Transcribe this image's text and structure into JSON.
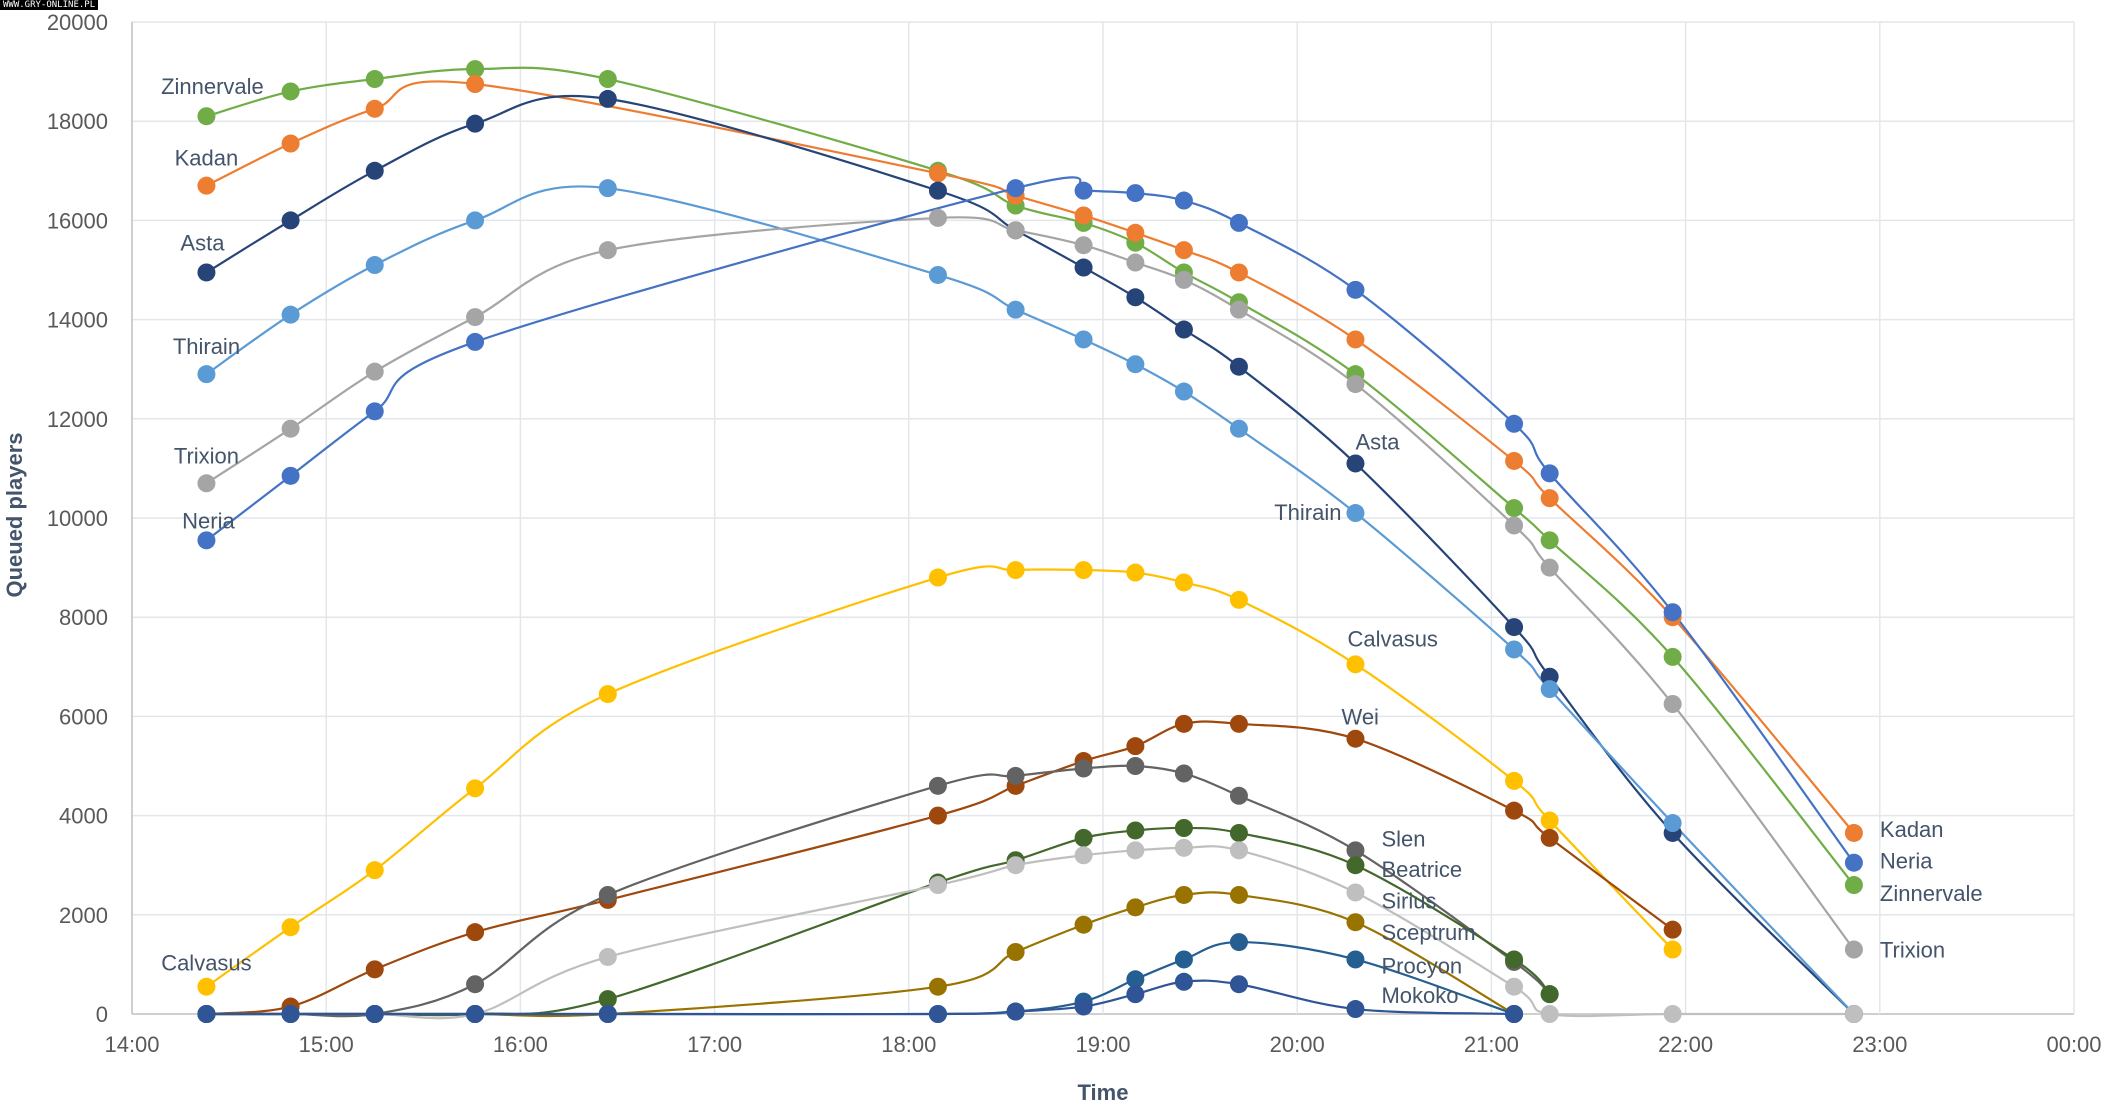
{
  "watermark": "WWW.GRY-ONLINE.PL",
  "chart_data": {
    "type": "line",
    "title": "",
    "xlabel": "Time",
    "ylabel": "Queued players",
    "ylim": [
      0,
      20000
    ],
    "xlim": [
      "14:00",
      "00:00"
    ],
    "y_ticks": [
      0,
      2000,
      4000,
      6000,
      8000,
      10000,
      12000,
      14000,
      16000,
      18000,
      20000
    ],
    "x_ticks": [
      "14:00",
      "15:00",
      "16:00",
      "17:00",
      "18:00",
      "19:00",
      "20:00",
      "21:00",
      "22:00",
      "23:00",
      "00:00"
    ],
    "grid": true,
    "legend": "none (inline labels)",
    "x": [
      "14:23",
      "14:49",
      "15:15",
      "15:46",
      "16:27",
      "18:09",
      "18:33",
      "18:54",
      "19:10",
      "19:25",
      "19:42",
      "20:18",
      "21:07",
      "21:18",
      "21:56",
      "22:52"
    ],
    "series": [
      {
        "name": "Zinnervale",
        "color": "#70ad47",
        "values": [
          18100,
          18600,
          18850,
          19050,
          18850,
          17000,
          16300,
          15950,
          15550,
          14950,
          14350,
          12900,
          10200,
          9550,
          7200,
          2600
        ]
      },
      {
        "name": "Kadan",
        "color": "#ed7d31",
        "values": [
          16700,
          17550,
          18250,
          18750,
          null,
          16950,
          16500,
          16100,
          15750,
          15400,
          14950,
          13600,
          11150,
          10400,
          8000,
          3650
        ]
      },
      {
        "name": "Asta",
        "color": "#264478",
        "values": [
          14950,
          16000,
          17000,
          17950,
          18450,
          16600,
          15800,
          15050,
          14450,
          13800,
          13050,
          11100,
          7800,
          6800,
          3650,
          0
        ]
      },
      {
        "name": "Thirain",
        "color": "#5b9bd5",
        "values": [
          12900,
          14100,
          15100,
          16000,
          16650,
          14900,
          14200,
          13600,
          13100,
          12550,
          11800,
          10100,
          7350,
          6550,
          3850,
          0
        ]
      },
      {
        "name": "Trixion",
        "color": "#a5a5a5",
        "values": [
          10700,
          11800,
          12950,
          14050,
          15400,
          16050,
          15800,
          15500,
          15150,
          14800,
          14200,
          12700,
          9850,
          9000,
          6250,
          1300
        ]
      },
      {
        "name": "Neria",
        "color": "#4472c4",
        "values": [
          9550,
          10850,
          12150,
          13550,
          null,
          null,
          16650,
          16600,
          16550,
          16400,
          15950,
          14600,
          11900,
          10900,
          8100,
          3050
        ]
      },
      {
        "name": "Calvasus",
        "color": "#ffc000",
        "values": [
          550,
          1750,
          2900,
          4550,
          6450,
          8800,
          8950,
          8950,
          8900,
          8700,
          8350,
          7050,
          4700,
          3900,
          1300,
          null
        ]
      },
      {
        "name": "Wei",
        "color": "#9e480e",
        "values": [
          0,
          150,
          900,
          1650,
          2300,
          4000,
          4600,
          5100,
          5400,
          5850,
          5850,
          5550,
          4100,
          3550,
          1700,
          null
        ]
      },
      {
        "name": "Slen",
        "color": "#636363",
        "values": [
          0,
          0,
          0,
          600,
          2400,
          4600,
          4800,
          4950,
          5000,
          4850,
          4400,
          3300,
          1050,
          400,
          null,
          null
        ]
      },
      {
        "name": "Beatrice",
        "color": "#43682b",
        "values": [
          0,
          0,
          0,
          0,
          300,
          2650,
          3100,
          3550,
          3700,
          3750,
          3650,
          3000,
          1100,
          400,
          null,
          null
        ]
      },
      {
        "name": "Sirius",
        "color": "#bfbfbf",
        "values": [
          0,
          0,
          0,
          0,
          1150,
          2600,
          3000,
          3200,
          3300,
          3350,
          3300,
          2450,
          550,
          0,
          0,
          0
        ]
      },
      {
        "name": "Sceptrum",
        "color": "#997300",
        "values": [
          0,
          0,
          0,
          0,
          0,
          550,
          1250,
          1800,
          2150,
          2400,
          2400,
          1850,
          0,
          null,
          null,
          null
        ]
      },
      {
        "name": "Procyon",
        "color": "#255e91",
        "values": [
          0,
          0,
          0,
          0,
          0,
          0,
          50,
          250,
          700,
          1100,
          1450,
          1100,
          0,
          null,
          null,
          null
        ]
      },
      {
        "name": "Mokoko",
        "color": "#2f5597",
        "values": [
          0,
          0,
          0,
          0,
          0,
          0,
          50,
          150,
          400,
          650,
          600,
          100,
          0,
          null,
          null,
          null
        ]
      }
    ]
  }
}
